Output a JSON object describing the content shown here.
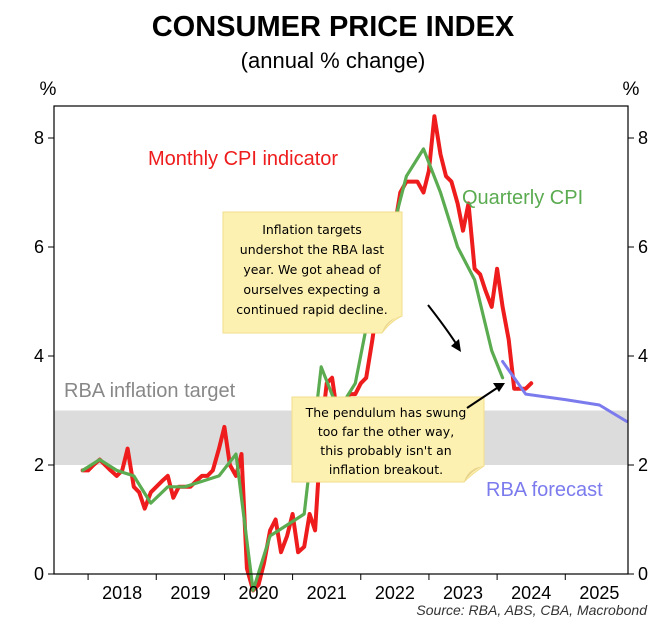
{
  "chart_data": {
    "type": "line",
    "title": "CONSUMER PRICE INDEX",
    "subtitle": "(annual % change)",
    "y_unit_left": "%",
    "y_unit_right": "%",
    "ylim": [
      0,
      8.5
    ],
    "yticks": [
      0,
      2,
      4,
      6,
      8
    ],
    "xlim": [
      2017.5,
      2025.92
    ],
    "xticks": [
      {
        "label": "2018",
        "x": 2018.5
      },
      {
        "label": "2019",
        "x": 2019.5
      },
      {
        "label": "2020",
        "x": 2020.5
      },
      {
        "label": "2021",
        "x": 2021.5
      },
      {
        "label": "2022",
        "x": 2022.5
      },
      {
        "label": "2023",
        "x": 2023.5
      },
      {
        "label": "2024",
        "x": 2024.5
      },
      {
        "label": "2025",
        "x": 2025.5
      }
    ],
    "target_band": {
      "label": "RBA inflation target",
      "low": 2,
      "high": 3
    },
    "series": [
      {
        "name": "Monthly CPI indicator",
        "color": "#ee1c1c",
        "points": [
          [
            2017.92,
            1.9
          ],
          [
            2018.0,
            1.9
          ],
          [
            2018.08,
            2.0
          ],
          [
            2018.17,
            2.1
          ],
          [
            2018.25,
            2.0
          ],
          [
            2018.33,
            1.9
          ],
          [
            2018.42,
            1.8
          ],
          [
            2018.5,
            1.9
          ],
          [
            2018.58,
            2.3
          ],
          [
            2018.67,
            1.6
          ],
          [
            2018.75,
            1.5
          ],
          [
            2018.83,
            1.2
          ],
          [
            2018.92,
            1.5
          ],
          [
            2019.0,
            1.6
          ],
          [
            2019.08,
            1.7
          ],
          [
            2019.17,
            1.8
          ],
          [
            2019.25,
            1.4
          ],
          [
            2019.33,
            1.6
          ],
          [
            2019.42,
            1.6
          ],
          [
            2019.5,
            1.6
          ],
          [
            2019.58,
            1.7
          ],
          [
            2019.67,
            1.8
          ],
          [
            2019.75,
            1.8
          ],
          [
            2019.83,
            1.9
          ],
          [
            2019.92,
            2.3
          ],
          [
            2020.0,
            2.7
          ],
          [
            2020.08,
            2.0
          ],
          [
            2020.17,
            1.8
          ],
          [
            2020.25,
            2.2
          ],
          [
            2020.33,
            0.1
          ],
          [
            2020.42,
            -0.3
          ],
          [
            2020.5,
            -0.2
          ],
          [
            2020.58,
            0.2
          ],
          [
            2020.67,
            0.8
          ],
          [
            2020.75,
            1.0
          ],
          [
            2020.83,
            0.4
          ],
          [
            2020.92,
            0.7
          ],
          [
            2021.0,
            1.1
          ],
          [
            2021.08,
            0.4
          ],
          [
            2021.17,
            0.5
          ],
          [
            2021.25,
            1.1
          ],
          [
            2021.33,
            0.8
          ],
          [
            2021.42,
            2.6
          ],
          [
            2021.5,
            3.5
          ],
          [
            2021.58,
            3.6
          ],
          [
            2021.67,
            2.8
          ],
          [
            2021.75,
            3.0
          ],
          [
            2021.83,
            3.3
          ],
          [
            2021.92,
            3.3
          ],
          [
            2022.0,
            3.5
          ],
          [
            2022.08,
            3.6
          ],
          [
            2022.17,
            4.3
          ],
          [
            2022.25,
            5.0
          ],
          [
            2022.33,
            5.5
          ],
          [
            2022.42,
            5.8
          ],
          [
            2022.5,
            6.4
          ],
          [
            2022.58,
            7.0
          ],
          [
            2022.67,
            7.2
          ],
          [
            2022.75,
            7.2
          ],
          [
            2022.83,
            7.2
          ],
          [
            2022.92,
            7.0
          ],
          [
            2023.0,
            7.4
          ],
          [
            2023.08,
            8.4
          ],
          [
            2023.17,
            7.7
          ],
          [
            2023.25,
            7.3
          ],
          [
            2023.33,
            7.2
          ],
          [
            2023.42,
            6.8
          ],
          [
            2023.5,
            6.3
          ],
          [
            2023.58,
            6.8
          ],
          [
            2023.67,
            5.6
          ],
          [
            2023.75,
            5.5
          ],
          [
            2023.83,
            5.2
          ],
          [
            2023.92,
            4.9
          ],
          [
            2024.0,
            5.6
          ],
          [
            2024.08,
            4.9
          ],
          [
            2024.17,
            4.3
          ],
          [
            2024.25,
            3.4
          ],
          [
            2024.33,
            3.4
          ],
          [
            2024.42,
            3.4
          ],
          [
            2024.5,
            3.5
          ]
        ]
      },
      {
        "name": "Quarterly CPI",
        "color": "#5bab51",
        "points": [
          [
            2017.92,
            1.9
          ],
          [
            2018.17,
            2.1
          ],
          [
            2018.42,
            1.9
          ],
          [
            2018.67,
            1.8
          ],
          [
            2018.92,
            1.3
          ],
          [
            2019.17,
            1.6
          ],
          [
            2019.42,
            1.6
          ],
          [
            2019.67,
            1.7
          ],
          [
            2019.92,
            1.8
          ],
          [
            2020.17,
            2.2
          ],
          [
            2020.42,
            -0.3
          ],
          [
            2020.67,
            0.7
          ],
          [
            2020.92,
            0.9
          ],
          [
            2021.17,
            1.1
          ],
          [
            2021.42,
            3.8
          ],
          [
            2021.67,
            3.0
          ],
          [
            2021.92,
            3.5
          ],
          [
            2022.17,
            5.1
          ],
          [
            2022.42,
            6.1
          ],
          [
            2022.67,
            7.3
          ],
          [
            2022.92,
            7.8
          ],
          [
            2023.17,
            7.0
          ],
          [
            2023.42,
            6.0
          ],
          [
            2023.67,
            5.4
          ],
          [
            2023.92,
            4.1
          ],
          [
            2024.08,
            3.6
          ]
        ]
      },
      {
        "name": "RBA forecast",
        "color": "#7b7bee",
        "points": [
          [
            2024.08,
            3.9
          ],
          [
            2024.42,
            3.3
          ],
          [
            2025.0,
            3.2
          ],
          [
            2025.5,
            3.1
          ],
          [
            2025.9,
            2.8
          ]
        ]
      }
    ],
    "annotations": [
      {
        "text": [
          "Inflation targets",
          "undershot the RBA last",
          "year. We got ahead of",
          "ourselves expecting a",
          "continued rapid decline."
        ]
      },
      {
        "text": [
          "The pendulum has swung",
          "too far the other way,",
          "this probably isn't an",
          "inflation breakout."
        ]
      }
    ],
    "source": "Source: RBA, ABS, CBA, Macrobond"
  }
}
